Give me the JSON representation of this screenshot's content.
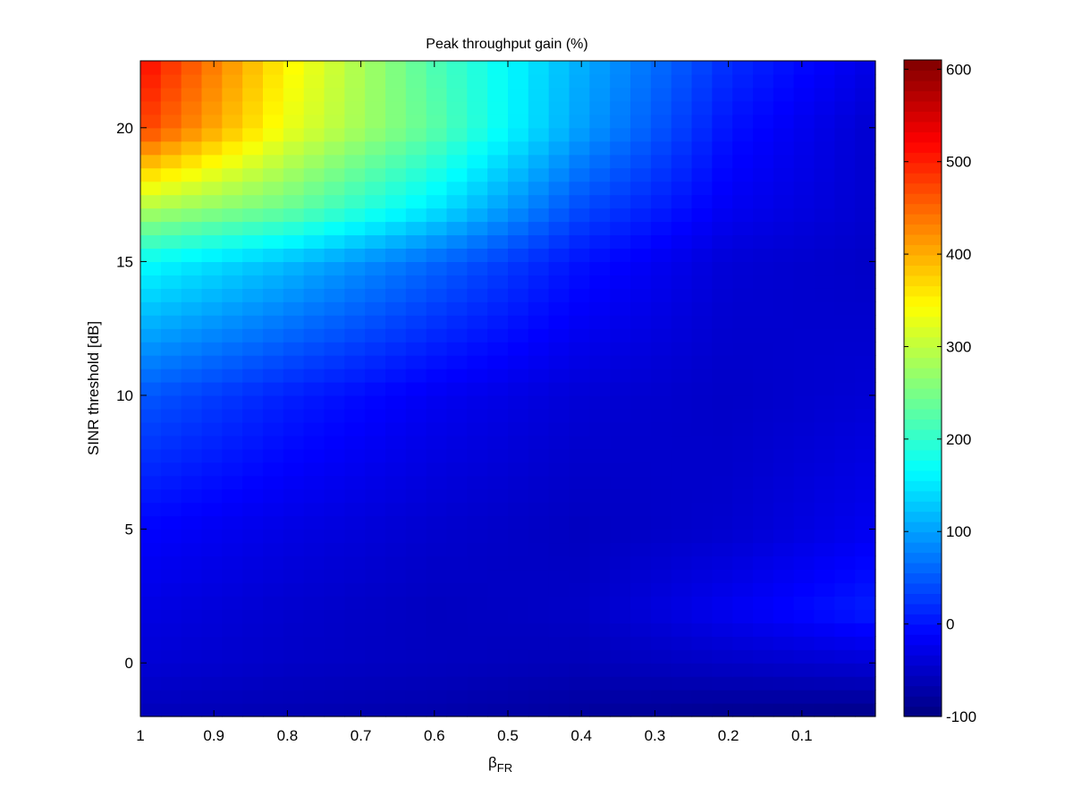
{
  "chart_data": {
    "type": "heatmap",
    "title": "Peak throughput gain (%)",
    "xlabel_main": "β",
    "xlabel_sub": "FR",
    "ylabel": "SINR threshold [dB]",
    "x_range": [
      1.0,
      0.0
    ],
    "x_direction": "reversed",
    "x_ticks": [
      1,
      0.9,
      0.8,
      0.7,
      0.6,
      0.5,
      0.4,
      0.3,
      0.2,
      0.1
    ],
    "x_tick_labels": [
      "1",
      "0.9",
      "0.8",
      "0.7",
      "0.6",
      "0.5",
      "0.4",
      "0.3",
      "0.2",
      "0.1"
    ],
    "y_range": [
      -2,
      22.5
    ],
    "y_ticks": [
      0,
      5,
      10,
      15,
      20
    ],
    "y_tick_labels": [
      "0",
      "5",
      "10",
      "15",
      "20"
    ],
    "colormap": "jet",
    "color_range": [
      -100,
      610
    ],
    "colorbar_ticks": [
      -100,
      0,
      100,
      200,
      300,
      400,
      500,
      600
    ],
    "colorbar_tick_labels": [
      "-100",
      "0",
      "100",
      "200",
      "300",
      "400",
      "500",
      "600"
    ],
    "grid": false,
    "colorbar_position": "right",
    "x_columns": [
      1.0,
      0.8,
      0.6,
      0.4,
      0.2,
      0.0
    ],
    "y_rows": [
      -2,
      0,
      2,
      5,
      10,
      15,
      17,
      20,
      22.5
    ],
    "z_values": [
      [
        -60,
        -65,
        -70,
        -80,
        -90,
        -95
      ],
      [
        -40,
        -50,
        -55,
        -60,
        -50,
        -40
      ],
      [
        -30,
        -45,
        -55,
        -50,
        -20,
        10
      ],
      [
        -10,
        -30,
        -45,
        -55,
        -45,
        -20
      ],
      [
        50,
        10,
        -20,
        -40,
        -50,
        -40
      ],
      [
        170,
        120,
        60,
        0,
        -40,
        -50
      ],
      [
        290,
        240,
        150,
        40,
        -20,
        -45
      ],
      [
        480,
        330,
        230,
        100,
        0,
        -45
      ],
      [
        520,
        350,
        220,
        110,
        20,
        -30
      ]
    ]
  }
}
